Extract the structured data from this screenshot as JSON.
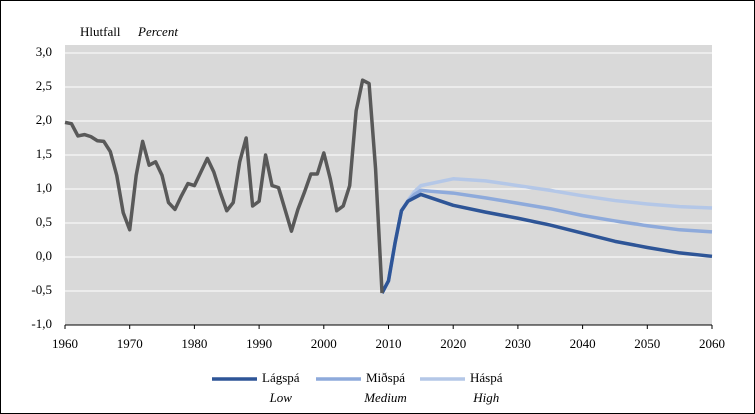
{
  "chart_data": {
    "type": "line",
    "ylabel": "Hlutfall",
    "ylabel_en": "Percent",
    "xlim": [
      1960,
      2060
    ],
    "xticks": [
      1960,
      1970,
      1980,
      1990,
      2000,
      2010,
      2020,
      2030,
      2040,
      2050,
      2060
    ],
    "ylim": [
      -1.0,
      3.0
    ],
    "yticks": [
      {
        "value": -1.0,
        "label": "-1,0"
      },
      {
        "value": -0.5,
        "label": "-0,5"
      },
      {
        "value": 0.0,
        "label": "0,0"
      },
      {
        "value": 0.5,
        "label": "0,5"
      },
      {
        "value": 1.0,
        "label": "1,0"
      },
      {
        "value": 1.5,
        "label": "1,5"
      },
      {
        "value": 2.0,
        "label": "2,0"
      },
      {
        "value": 2.5,
        "label": "2,5"
      },
      {
        "value": 3.0,
        "label": "3,0"
      }
    ],
    "grid": true,
    "legend": "bottom",
    "series": [
      {
        "color": "#595959",
        "x": [
          1960,
          1961,
          1962,
          1963,
          1964,
          1965,
          1966,
          1967,
          1968,
          1969,
          1970,
          1971,
          1972,
          1973,
          1974,
          1975,
          1976,
          1977,
          1978,
          1979,
          1980,
          1981,
          1982,
          1983,
          1984,
          1985,
          1986,
          1987,
          1988,
          1989,
          1990,
          1991,
          1992,
          1993,
          1994,
          1995,
          1996,
          1997,
          1998,
          1999,
          2000,
          2001,
          2002,
          2003,
          2004,
          2005,
          2006,
          2007,
          2008,
          2009
        ],
        "values": [
          1.98,
          1.96,
          1.78,
          1.8,
          1.77,
          1.71,
          1.7,
          1.55,
          1.2,
          0.65,
          0.4,
          1.2,
          1.7,
          1.35,
          1.4,
          1.2,
          0.8,
          0.7,
          0.9,
          1.08,
          1.05,
          1.25,
          1.45,
          1.25,
          0.95,
          0.68,
          0.8,
          1.4,
          1.75,
          0.75,
          0.82,
          1.5,
          1.05,
          1.02,
          0.7,
          0.38,
          0.7,
          0.95,
          1.22,
          1.22,
          1.53,
          1.15,
          0.68,
          0.75,
          1.05,
          2.15,
          2.6,
          2.55,
          1.3,
          -0.53
        ]
      },
      {
        "name": "Lágspá",
        "name_en": "Low",
        "color": "#2e5597",
        "x": [
          2009,
          2010,
          2011,
          2012,
          2013,
          2014,
          2015,
          2020,
          2025,
          2030,
          2035,
          2040,
          2045,
          2050,
          2055,
          2060
        ],
        "values": [
          -0.53,
          -0.35,
          0.2,
          0.68,
          0.82,
          0.87,
          0.92,
          0.76,
          0.66,
          0.57,
          0.47,
          0.35,
          0.23,
          0.14,
          0.06,
          0.01
        ]
      },
      {
        "name": "Miðspá",
        "name_en": "Medium",
        "color": "#8eaadb",
        "x": [
          2009,
          2010,
          2011,
          2012,
          2013,
          2014,
          2015,
          2020,
          2025,
          2030,
          2035,
          2040,
          2045,
          2050,
          2055,
          2060
        ],
        "values": [
          -0.53,
          -0.35,
          0.2,
          0.68,
          0.82,
          0.92,
          0.98,
          0.94,
          0.87,
          0.79,
          0.71,
          0.61,
          0.53,
          0.46,
          0.4,
          0.37
        ]
      },
      {
        "name": "Háspá",
        "name_en": "High",
        "color": "#b4c7e7",
        "x": [
          2009,
          2010,
          2011,
          2012,
          2013,
          2014,
          2015,
          2020,
          2025,
          2030,
          2035,
          2040,
          2045,
          2050,
          2055,
          2060
        ],
        "values": [
          -0.53,
          -0.35,
          0.2,
          0.68,
          0.83,
          0.96,
          1.05,
          1.15,
          1.12,
          1.05,
          0.98,
          0.9,
          0.83,
          0.78,
          0.74,
          0.72
        ]
      }
    ]
  }
}
